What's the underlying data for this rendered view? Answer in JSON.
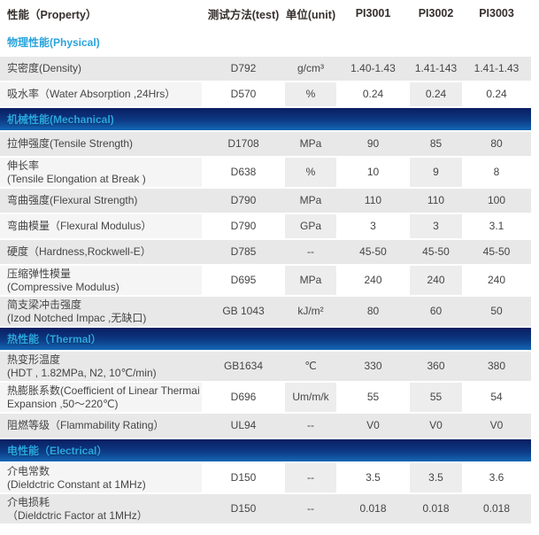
{
  "colors": {
    "accent_cyan": "#29a3dc",
    "bar_gradient_top": "#0a1e61",
    "bar_gradient_bottom": "#1467b5",
    "row_dark": "#e8e8e8",
    "row_light_alt": "#ededed",
    "header_text": "#35302e",
    "body_text": "#454545"
  },
  "table": {
    "columns": [
      {
        "key": "property",
        "label": "性能（Property）"
      },
      {
        "key": "test",
        "label": "测试方法(test)"
      },
      {
        "key": "unit",
        "label": "单位(unit)"
      },
      {
        "key": "pi3001",
        "label": "PI3001"
      },
      {
        "key": "pi3002",
        "label": "PI3002"
      },
      {
        "key": "pi3003",
        "label": "PI3003"
      }
    ],
    "sections": [
      {
        "label": "物理性能(Physical)",
        "style": "plain",
        "rows": [
          {
            "shade": "dark",
            "property": "实密度(Density)",
            "test": "D792",
            "unit": "g/cm³",
            "pi3001": "1.40-1.43",
            "pi3002": "1.41-143",
            "pi3003": "1.41-1.43"
          },
          {
            "shade": "light",
            "property": "吸水率（Water Absorption ,24Hrs）",
            "test": "D570",
            "unit": "%",
            "pi3001": "0.24",
            "pi3002": "0.24",
            "pi3003": "0.24"
          }
        ]
      },
      {
        "label": "机械性能(Mechanical)",
        "style": "bar",
        "rows": [
          {
            "shade": "dark",
            "property": "拉伸强度(Tensile Strength)",
            "test": "D1708",
            "unit": "MPa",
            "pi3001": "90",
            "pi3002": "85",
            "pi3003": "80"
          },
          {
            "shade": "light",
            "property": "伸长率\n(Tensile Elongation at Break )",
            "test": "D638",
            "unit": "%",
            "pi3001": "10",
            "pi3002": "9",
            "pi3003": "8"
          },
          {
            "shade": "dark",
            "property": "弯曲强度(Flexural Strength)",
            "test": "D790",
            "unit": "MPa",
            "pi3001": "110",
            "pi3002": "110",
            "pi3003": "100"
          },
          {
            "shade": "light",
            "property": "弯曲模量（Flexural Modulus）",
            "test": "D790",
            "unit": "GPa",
            "pi3001": "3",
            "pi3002": "3",
            "pi3003": "3.1"
          },
          {
            "shade": "dark",
            "property": "硬度（Hardness,Rockwell-E）",
            "test": "D785",
            "unit": "--",
            "pi3001": "45-50",
            "pi3002": "45-50",
            "pi3003": "45-50"
          },
          {
            "shade": "light",
            "property": "压缩弹性模量\n(Compressive Modulus)",
            "test": "D695",
            "unit": "MPa",
            "pi3001": "240",
            "pi3002": "240",
            "pi3003": "240"
          },
          {
            "shade": "dark",
            "property": "简支梁冲击强度\n(Izod Notched Impac ,无缺口)",
            "test": "GB 1043",
            "unit": "kJ/m²",
            "pi3001": "80",
            "pi3002": "60",
            "pi3003": "50"
          }
        ]
      },
      {
        "label": "热性能（Thermal）",
        "style": "bar",
        "rows": [
          {
            "shade": "dark",
            "property": "热变形温度\n(HDT , 1.82MPa, N2, 10℃/min)",
            "test": "GB1634",
            "unit": "℃",
            "pi3001": "330",
            "pi3002": "360",
            "pi3003": "380"
          },
          {
            "shade": "light",
            "property": "热膨胀系数(Coefficient of Linear Thermai\nExpansion ,50～220℃)",
            "test": "D696",
            "unit": "Um/m/k",
            "pi3001": "55",
            "pi3002": "55",
            "pi3003": "54"
          },
          {
            "shade": "dark",
            "property": "阻燃等级（Flammability Rating）",
            "test": "UL94",
            "unit": "--",
            "pi3001": "V0",
            "pi3002": "V0",
            "pi3003": "V0"
          }
        ]
      },
      {
        "label": "电性能（Electrical）",
        "style": "bar",
        "rows": [
          {
            "shade": "light",
            "property": "介电常数\n(Dieldctric Constant at 1MHz)",
            "test": "D150",
            "unit": "--",
            "pi3001": "3.5",
            "pi3002": "3.5",
            "pi3003": "3.6"
          },
          {
            "shade": "dark",
            "property": "介电损耗\n（Dieldctric Factor at 1MHz）",
            "test": "D150",
            "unit": "--",
            "pi3001": "0.018",
            "pi3002": "0.018",
            "pi3003": "0.018"
          }
        ]
      }
    ]
  }
}
